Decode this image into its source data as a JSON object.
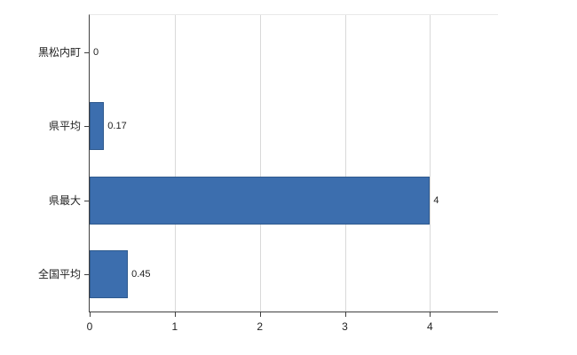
{
  "chart_data": {
    "type": "bar",
    "orientation": "horizontal",
    "title": "",
    "xlabel": "",
    "ylabel": "",
    "categories": [
      "黒松内町",
      "県平均",
      "県最大",
      "全国平均"
    ],
    "values": [
      0,
      0.17,
      4,
      0.45
    ],
    "value_labels": [
      "0",
      "0.17",
      "4",
      "0.45"
    ],
    "xticks": [
      0,
      1,
      2,
      3,
      4
    ],
    "xtick_labels": [
      "0",
      "1",
      "2",
      "3",
      "4"
    ],
    "xlim": [
      0,
      4.8
    ],
    "grid": true,
    "legend": false,
    "bar_color": "#3c6eae",
    "bar_border_color": "#2f5a8e",
    "grid_color": "#d9d9d9",
    "axis_color": "#404040",
    "text_color": "#222222"
  }
}
